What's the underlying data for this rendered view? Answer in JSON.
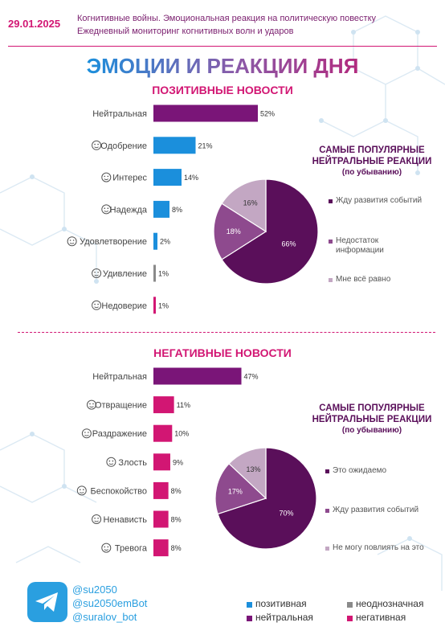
{
  "header": {
    "date": "29.01.2025",
    "line1": "Когнитивные войны. Эмоциональная реакция на политическую повестку",
    "line2": "Ежедневный мониторинг когнитивных волн и ударов"
  },
  "main_title": "ЭМОЦИИ И РЕАКЦИИ ДНЯ",
  "positive_title": "ПОЗИТИВНЫЕ НОВОСТИ",
  "negative_title": "НЕГАТИВНЫЕ НОВОСТИ",
  "pie_title_1": "САМЫЕ ПОПУЛЯРНЫЕ",
  "pie_title_2": "НЕЙТРАЛЬНЫЕ РЕАКЦИИ",
  "pie_title_sub": "(по убыванию)",
  "footer": {
    "handles": [
      "@su2050",
      "@su2050emBot",
      "@suralov_bot"
    ],
    "legend": [
      {
        "label": "позитивная",
        "color": "#1b8fdc"
      },
      {
        "label": "неоднозначная",
        "color": "#8a8a8a"
      },
      {
        "label": "нейтральная",
        "color": "#7a1578"
      },
      {
        "label": "негативная",
        "color": "#d21673"
      }
    ]
  },
  "chart_data": [
    {
      "type": "bar",
      "orientation": "horizontal",
      "title": "ПОЗИТИВНЫЕ НОВОСТИ",
      "categories": [
        "Нейтральная",
        "Одобрение",
        "Интерес",
        "Надежда",
        "Удовлетворение",
        "Удивление",
        "Недоверие"
      ],
      "icons": [
        "",
        "smile-icon",
        "thinking-icon",
        "hands-icon",
        "content-icon",
        "surprised-icon",
        "suspicious-icon"
      ],
      "values": [
        52,
        21,
        14,
        8,
        2,
        1,
        1
      ],
      "value_labels": [
        "52%",
        "21%",
        "14%",
        "8%",
        "2%",
        "1%",
        "1%"
      ],
      "colors": [
        "#7a1578",
        "#1b8fdc",
        "#1b8fdc",
        "#1b8fdc",
        "#1b8fdc",
        "#8a8a8a",
        "#d21673"
      ]
    },
    {
      "type": "pie",
      "title": "САМЫЕ ПОПУЛЯРНЫЕ НЕЙТРАЛЬНЫЕ РЕАКЦИИ (по убыванию)",
      "labels": [
        "Жду развития событий",
        "Недостаток информации",
        "Мне всё равно"
      ],
      "values": [
        66,
        18,
        16
      ],
      "value_labels": [
        "66%",
        "18%",
        "16%"
      ],
      "colors": [
        "#5a0f5a",
        "#8e4a8e",
        "#c3a7c3"
      ]
    },
    {
      "type": "bar",
      "orientation": "horizontal",
      "title": "НЕГАТИВНЫЕ НОВОСТИ",
      "categories": [
        "Нейтральная",
        "Отвращение",
        "Раздражение",
        "Злость",
        "Беспокойство",
        "Ненависть",
        "Тревога"
      ],
      "icons": [
        "",
        "disgust-icon",
        "annoyed-icon",
        "angry-icon",
        "worried-icon",
        "hate-icon",
        "anxious-icon"
      ],
      "values": [
        47,
        11,
        10,
        9,
        8,
        8,
        8
      ],
      "value_labels": [
        "47%",
        "11%",
        "10%",
        "9%",
        "8%",
        "8%",
        "8%"
      ],
      "colors": [
        "#7a1578",
        "#d21673",
        "#d21673",
        "#d21673",
        "#d21673",
        "#d21673",
        "#d21673"
      ]
    },
    {
      "type": "pie",
      "title": "САМЫЕ ПОПУЛЯРНЫЕ НЕЙТРАЛЬНЫЕ РЕАКЦИИ (по убыванию)",
      "labels": [
        "Это ожидаемо",
        "Жду развития событий",
        "Не могу повлиять на это"
      ],
      "values": [
        70,
        17,
        13
      ],
      "value_labels": [
        "70%",
        "17%",
        "13%"
      ],
      "colors": [
        "#5a0f5a",
        "#8e4a8e",
        "#c3a7c3"
      ]
    }
  ]
}
